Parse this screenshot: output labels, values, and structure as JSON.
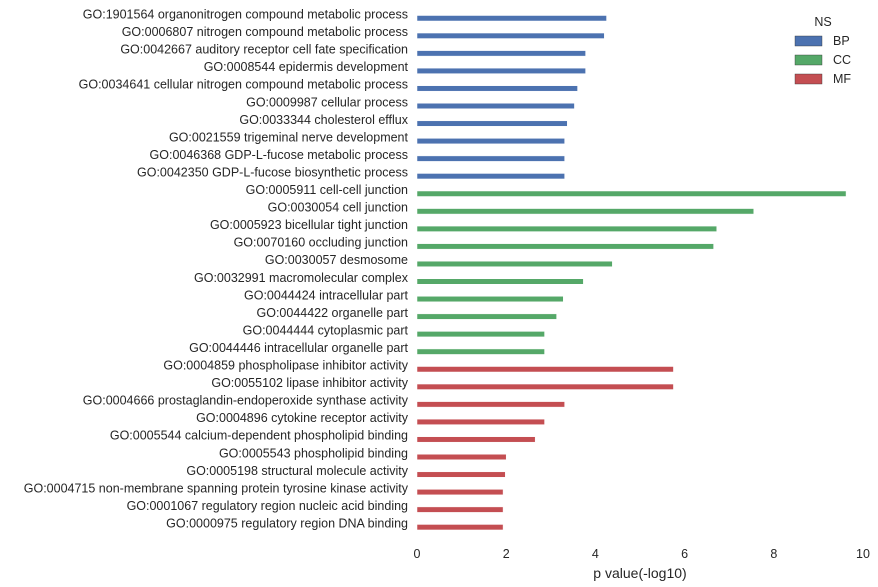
{
  "chart_data": {
    "type": "bar",
    "orientation": "horizontal",
    "xlabel": "p value(-log10)",
    "ylabel": "",
    "xlim": [
      0,
      10
    ],
    "xticks": [
      "0",
      "2",
      "4",
      "6",
      "8",
      "10"
    ],
    "grid": false,
    "legend": {
      "title": "NS",
      "position": "top-right",
      "entries": [
        {
          "name": "BP",
          "color": "#4c72b0"
        },
        {
          "name": "CC",
          "color": "#55a868"
        },
        {
          "name": "MF",
          "color": "#c44e52"
        }
      ]
    },
    "categories": [
      "GO:1901564 organonitrogen compound metabolic process",
      "GO:0006807 nitrogen compound metabolic process",
      "GO:0042667 auditory receptor cell fate specification",
      "GO:0008544 epidermis development",
      "GO:0034641 cellular nitrogen compound metabolic process",
      "GO:0009987 cellular process",
      "GO:0033344 cholesterol efflux",
      "GO:0021559 trigeminal nerve development",
      "GO:0046368 GDP-L-fucose metabolic process",
      "GO:0042350 GDP-L-fucose biosynthetic process",
      "GO:0005911 cell-cell junction",
      "GO:0030054 cell junction",
      "GO:0005923 bicellular tight junction",
      "GO:0070160 occluding junction",
      "GO:0030057 desmosome",
      "GO:0032991 macromolecular complex",
      "GO:0044424 intracellular part",
      "GO:0044422 organelle part",
      "GO:0044444 cytoplasmic part",
      "GO:0044446 intracellular organelle part",
      "GO:0004859 phospholipase inhibitor activity",
      "GO:0055102 lipase inhibitor activity",
      "GO:0004666 prostaglandin-endoperoxide synthase activity",
      "GO:0004896 cytokine receptor activity",
      "GO:0005544 calcium-dependent phospholipid binding",
      "GO:0005543 phospholipid binding",
      "GO:0005198 structural molecule activity",
      "GO:0004715 non-membrane spanning protein tyrosine kinase activity",
      "GO:0001067 regulatory region nucleic acid binding",
      "GO:0000975 regulatory region DNA binding"
    ],
    "values": [
      4.25,
      4.2,
      3.78,
      3.78,
      3.6,
      3.53,
      3.37,
      3.31,
      3.31,
      3.31,
      9.62,
      7.55,
      6.72,
      6.65,
      4.38,
      3.73,
      3.28,
      3.13,
      2.86,
      2.86,
      5.75,
      5.75,
      3.31,
      2.86,
      2.65,
      2.0,
      1.98,
      1.93,
      1.93,
      1.93
    ],
    "groups": [
      "BP",
      "BP",
      "BP",
      "BP",
      "BP",
      "BP",
      "BP",
      "BP",
      "BP",
      "BP",
      "CC",
      "CC",
      "CC",
      "CC",
      "CC",
      "CC",
      "CC",
      "CC",
      "CC",
      "CC",
      "MF",
      "MF",
      "MF",
      "MF",
      "MF",
      "MF",
      "MF",
      "MF",
      "MF",
      "MF"
    ]
  }
}
